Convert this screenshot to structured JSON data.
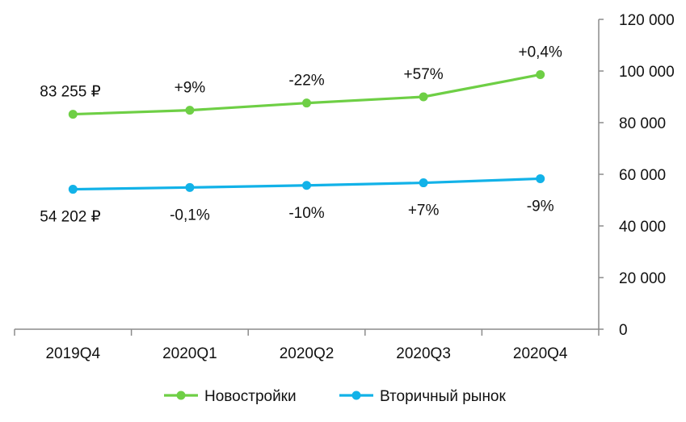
{
  "chart_data": {
    "type": "line",
    "categories": [
      "2019Q4",
      "2020Q1",
      "2020Q2",
      "2020Q3",
      "2020Q4"
    ],
    "series": [
      {
        "name": "Новостройки",
        "color": "#6ecf45",
        "values": [
          83255,
          84800,
          87600,
          90000,
          98600
        ],
        "labels": [
          "83 255 ₽",
          "+9%",
          "-22%",
          "+57%",
          "+0,4%"
        ]
      },
      {
        "name": "Вторичный рынок",
        "color": "#12b2e8",
        "values": [
          54202,
          54900,
          55700,
          56700,
          58300
        ],
        "labels": [
          "54 202 ₽",
          "-0,1%",
          "-10%",
          "+7%",
          "-9%"
        ]
      }
    ],
    "y_axis": {
      "position": "right",
      "min": 0,
      "max": 120000,
      "ticks": [
        "0",
        "20 000",
        "40 000",
        "60 000",
        "80 000",
        "100 000",
        "120 000"
      ]
    },
    "grid": false,
    "legend": "bottom"
  }
}
